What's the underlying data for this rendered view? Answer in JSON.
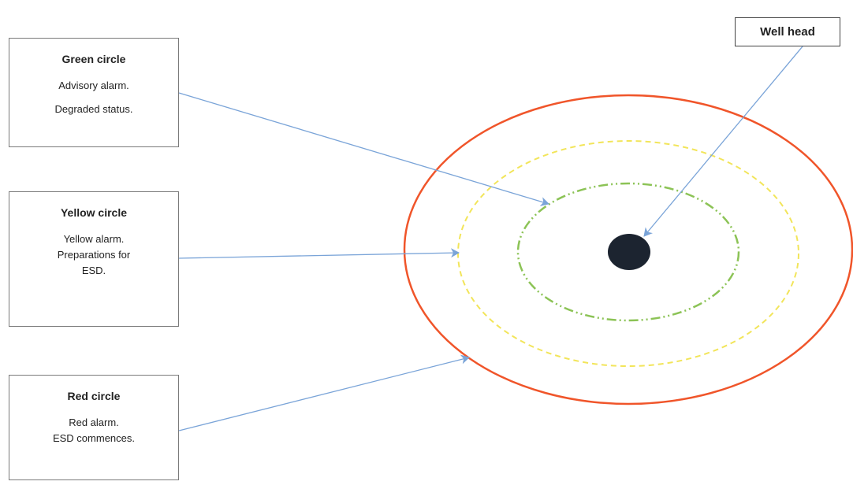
{
  "colors": {
    "red_circle": "#f0552a",
    "yellow_circle": "#f2e55a",
    "green_circle": "#8cc356",
    "arrow": "#7aa4d8",
    "well_head": "#1c2430",
    "box_border": "#7a7a7a"
  },
  "boxes": {
    "green": {
      "title": "Green circle",
      "lines": [
        "Advisory alarm.",
        "Degraded status."
      ]
    },
    "yellow": {
      "title": "Yellow circle",
      "lines": [
        "Yellow alarm.",
        "Preparations for",
        "ESD."
      ]
    },
    "red": {
      "title": "Red circle",
      "lines": [
        "Red alarm.",
        "ESD commences."
      ]
    },
    "well_head": {
      "title": "Well head"
    }
  }
}
